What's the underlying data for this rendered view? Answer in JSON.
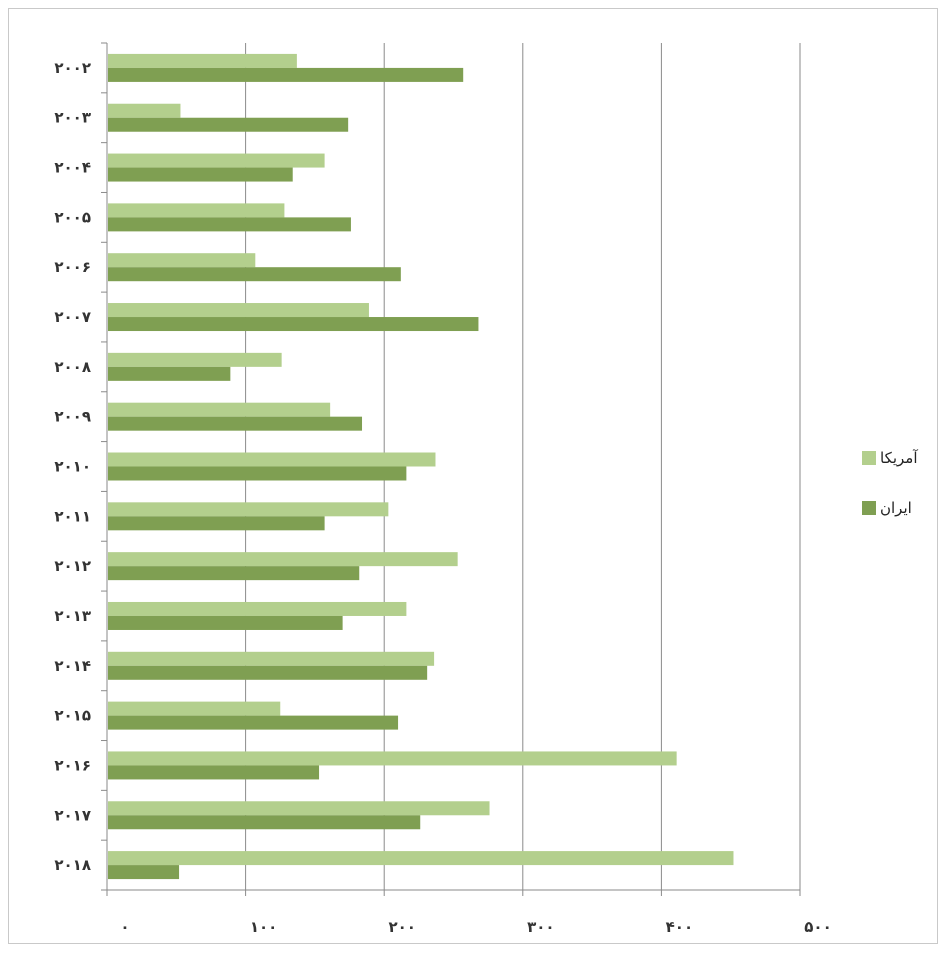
{
  "chart_data": {
    "type": "bar",
    "orientation": "horizontal",
    "categories": [
      "۲۰۰۲",
      "۲۰۰۳",
      "۲۰۰۴",
      "۲۰۰۵",
      "۲۰۰۶",
      "۲۰۰۷",
      "۲۰۰۸",
      "۲۰۰۹",
      "۲۰۱۰",
      "۲۰۱۱",
      "۲۰۱۲",
      "۲۰۱۳",
      "۲۰۱۴",
      "۲۰۱۵",
      "۲۰۱۶",
      "۲۰۱۷",
      "۲۰۱۸"
    ],
    "series": [
      {
        "name": "آمریکا",
        "color": "#b3cf8d",
        "values": [
          137,
          53,
          157,
          128,
          107,
          189,
          126,
          161,
          237,
          203,
          253,
          216,
          236,
          125,
          411,
          276,
          452
        ]
      },
      {
        "name": "ایران",
        "color": "#7f9f52",
        "values": [
          257,
          174,
          134,
          176,
          212,
          268,
          89,
          184,
          216,
          157,
          182,
          170,
          231,
          210,
          153,
          226,
          52
        ]
      }
    ],
    "xlim": [
      0,
      500
    ],
    "x_ticks": [
      0,
      100,
      200,
      300,
      400,
      500
    ],
    "x_tick_labels": [
      "۰",
      "۱۰۰",
      "۲۰۰",
      "۳۰۰",
      "۴۰۰",
      "۵۰۰"
    ],
    "grid": true,
    "legend_position": "right"
  }
}
